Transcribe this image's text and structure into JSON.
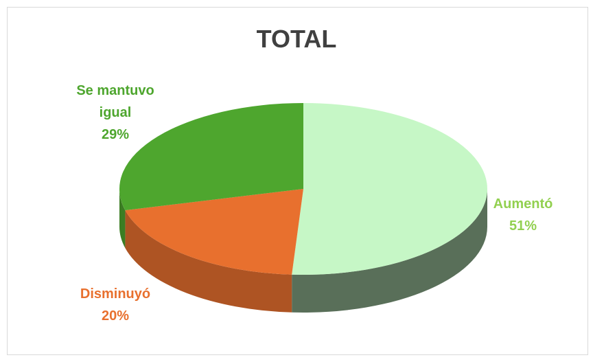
{
  "chart_data": {
    "type": "pie",
    "title": "TOTAL",
    "categories": [
      "Aumentó",
      "Disminuyó",
      "Se mantuvo igual"
    ],
    "values": [
      51,
      20,
      29
    ],
    "value_labels": [
      "51%",
      "20%",
      "29%"
    ],
    "colors": [
      "#c6f7c6",
      "#e8702e",
      "#4ea62e"
    ],
    "label_colors": [
      "#92d050",
      "#e8702e",
      "#4ea62e"
    ]
  }
}
